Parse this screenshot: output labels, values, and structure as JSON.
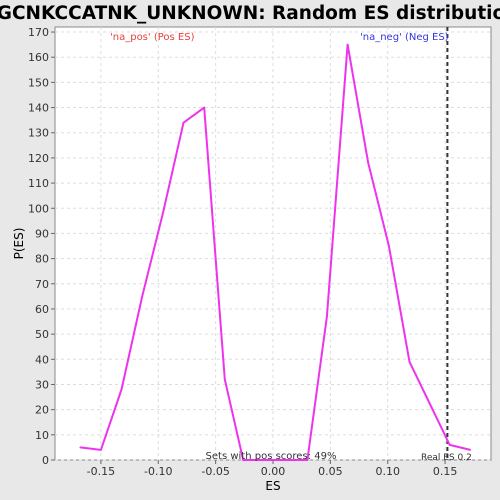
{
  "chart_data": {
    "type": "line",
    "title": "GGCNKCCATNK_UNKNOWN: Random ES distribution",
    "xlabel": "ES",
    "ylabel": "P(ES)",
    "xlim": [
      -0.19,
      0.19
    ],
    "ylim": [
      0,
      172
    ],
    "x_ticks": [
      -0.15,
      -0.1,
      -0.05,
      0.0,
      0.05,
      0.1,
      0.15
    ],
    "x_tick_labels": [
      "-0.15",
      "-0.10",
      "-0.05",
      "0.00",
      "0.05",
      "0.10",
      "0.15"
    ],
    "y_ticks": [
      0,
      10,
      20,
      30,
      40,
      50,
      60,
      70,
      80,
      90,
      100,
      110,
      120,
      130,
      140,
      150,
      160,
      170
    ],
    "grid": true,
    "series": [
      {
        "color": "#ee33ee",
        "x": [
          -0.168,
          -0.15,
          -0.132,
          -0.114,
          -0.096,
          -0.078,
          -0.06,
          -0.042,
          -0.026,
          -0.008,
          0.01,
          0.03,
          0.047,
          0.065,
          0.083,
          0.101,
          0.119,
          0.137,
          0.154,
          0.172
        ],
        "y": [
          5,
          4,
          28,
          65,
          98,
          134,
          140,
          32,
          0,
          0,
          0,
          0,
          57,
          165,
          118,
          85,
          39,
          22,
          6,
          4
        ]
      }
    ],
    "real_es": 0.152,
    "annotations": {
      "pos": "'na_pos' (Pos ES)",
      "neg": "'na_neg' (Neg ES)",
      "sets_pos": "Sets with pos scores: 49%",
      "real": "Real ES 0.2"
    }
  }
}
